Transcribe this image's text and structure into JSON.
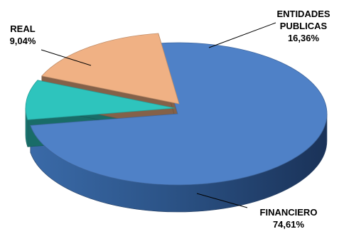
{
  "chart_data": {
    "type": "pie",
    "style": "3d-exploded",
    "categories": [
      "FINANCIERO",
      "REAL",
      "ENTIDADES PUBLICAS"
    ],
    "values": [
      74.61,
      9.04,
      16.36
    ],
    "value_labels": [
      "74,61%",
      "9,04%",
      "16,36%"
    ],
    "label_lines": [
      [
        "FINANCIERO"
      ],
      [
        "REAL"
      ],
      [
        "ENTIDADES",
        "PUBLICAS"
      ]
    ],
    "colors": {
      "FINANCIERO": "#4f81c7",
      "REAL": "#2ec4bd",
      "ENTIDADES PUBLICAS": "#f0b184"
    },
    "legend": "none",
    "title": ""
  }
}
